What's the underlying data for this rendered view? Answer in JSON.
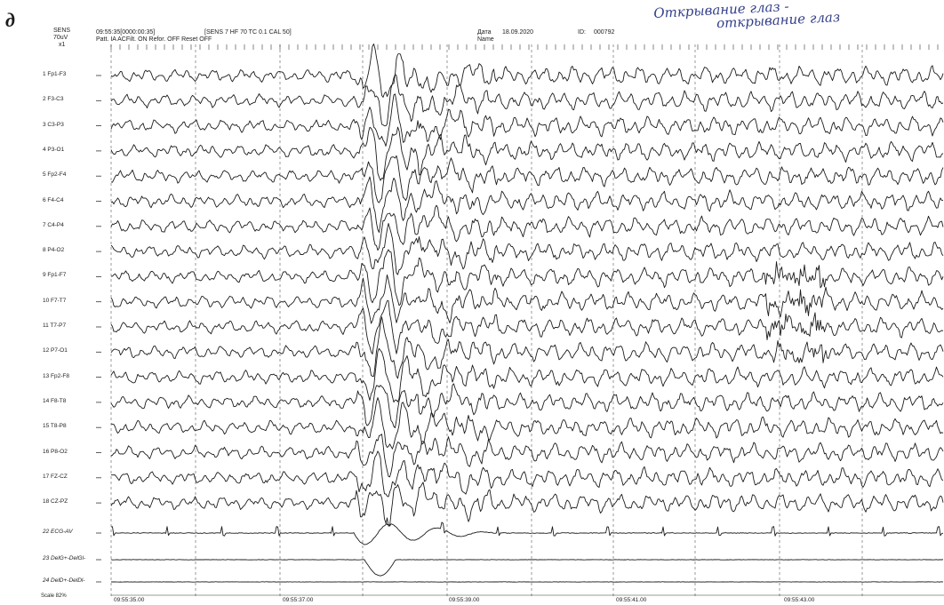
{
  "figure_letter": "д",
  "header": {
    "sens_label": "SENS",
    "sens_value": "70uV",
    "sens_mult": "x1",
    "time_counter": "09:55:35[0000:00:35]",
    "params": "[SENS 7  HF 70  TC 0.1  CAL 50]",
    "settings": "Patt. IA  ACFilt. ON  Refor. OFF  Reset OFF",
    "date_label": "Дата",
    "date_value": "18.09.2020",
    "name_label": "Name",
    "id_label": "ID:",
    "id_value": "000792"
  },
  "annotation": {
    "line1": "Открывание глаз -",
    "line2": "открывание глаз"
  },
  "channels": [
    {
      "label": "1  Fp1-F3"
    },
    {
      "label": "2  F3-C3"
    },
    {
      "label": "3  C3-P3"
    },
    {
      "label": "4  P3-O1"
    },
    {
      "label": "5  Fp2-F4"
    },
    {
      "label": "6  F4-C4"
    },
    {
      "label": "7  C4-P4"
    },
    {
      "label": "8  P4-O2"
    },
    {
      "label": "9  Fp1-F7"
    },
    {
      "label": "10  F7-T7"
    },
    {
      "label": "11  T7-P7"
    },
    {
      "label": "12  P7-O1"
    },
    {
      "label": "13  Fp2-F8"
    },
    {
      "label": "14  F8-T8"
    },
    {
      "label": "15  T8-P8"
    },
    {
      "label": "16  P8-O2"
    },
    {
      "label": "17  FZ-CZ"
    },
    {
      "label": "18  CZ-PZ"
    },
    {
      "label": "22  ECG-AV"
    },
    {
      "label": "23  DelG+-DelGl-"
    },
    {
      "label": "24  DelD+-DelDl-"
    }
  ],
  "time_marks": [
    "09:55:35.00",
    "09:55:37.00",
    "09:55:39.00",
    "09:55:41.00",
    "09:55:43.00"
  ],
  "scale_label": "Scale 82%"
}
